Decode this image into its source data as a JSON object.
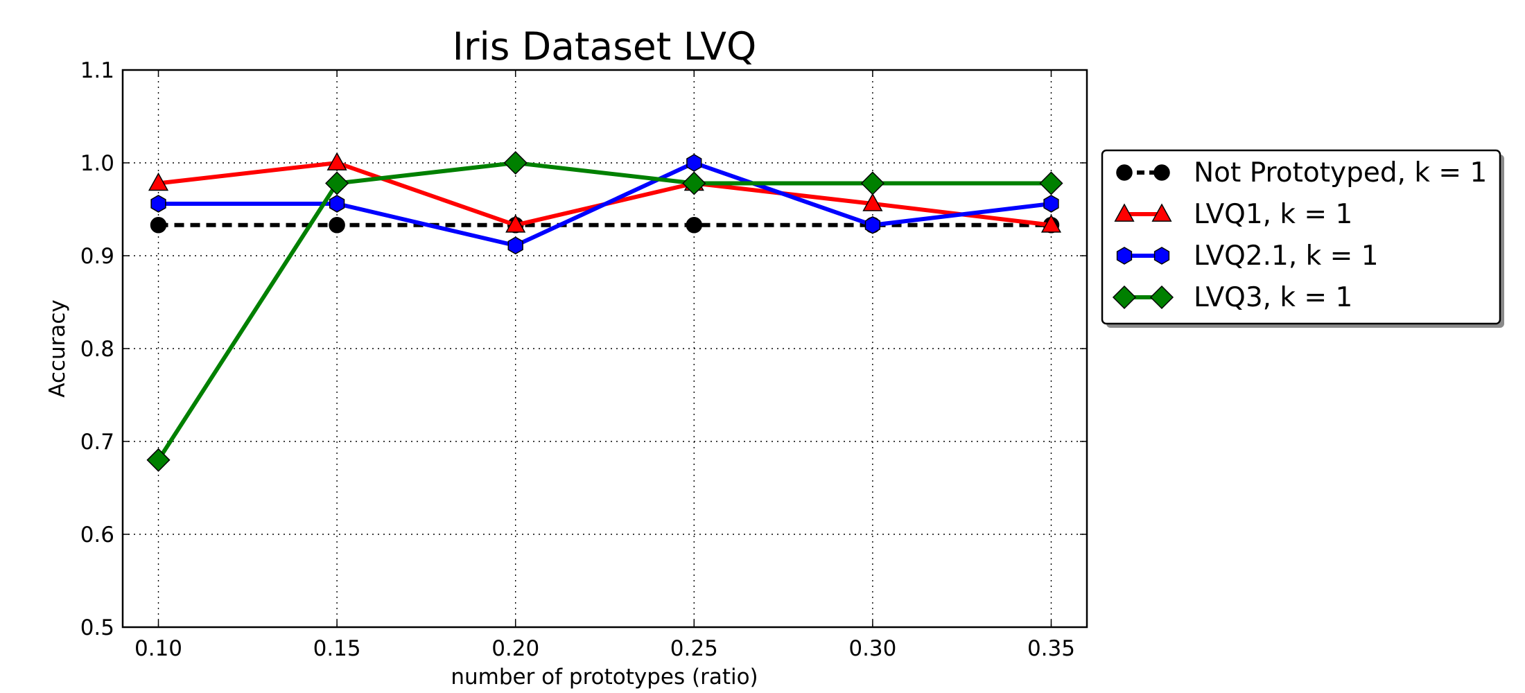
{
  "chart_data": {
    "type": "line",
    "title": "Iris Dataset LVQ",
    "xlabel": "number of prototypes (ratio)",
    "ylabel": "Accuracy",
    "x": [
      0.1,
      0.15,
      0.2,
      0.25,
      0.3,
      0.35
    ],
    "x_tick_labels": [
      "0.10",
      "0.15",
      "0.20",
      "0.25",
      "0.30",
      "0.35"
    ],
    "y_ticks": [
      0.5,
      0.6,
      0.7,
      0.8,
      0.9,
      1.0,
      1.1
    ],
    "y_tick_labels": [
      "0.5",
      "0.6",
      "0.7",
      "0.8",
      "0.9",
      "1.0",
      "1.1"
    ],
    "xlim": [
      0.09,
      0.36
    ],
    "ylim": [
      0.5,
      1.1
    ],
    "grid": true,
    "legend_placement": "outside right",
    "series": [
      {
        "name": "Not Prototyped, k = 1",
        "color": "#000000",
        "dashed": true,
        "marker": "circle",
        "values": [
          0.933,
          0.933,
          0.933,
          0.933,
          0.933,
          0.933
        ]
      },
      {
        "name": "LVQ1, k = 1",
        "color": "#ff0000",
        "dashed": false,
        "marker": "triangle",
        "values": [
          0.978,
          1.0,
          0.933,
          0.978,
          0.956,
          0.933
        ]
      },
      {
        "name": "LVQ2.1, k = 1",
        "color": "#0000ff",
        "dashed": false,
        "marker": "hexagon",
        "values": [
          0.956,
          0.956,
          0.911,
          1.0,
          0.933,
          0.956
        ]
      },
      {
        "name": "LVQ3, k = 1",
        "color": "#008000",
        "dashed": false,
        "marker": "diamond",
        "values": [
          0.68,
          0.978,
          1.0,
          0.978,
          0.978,
          0.978
        ]
      }
    ]
  }
}
